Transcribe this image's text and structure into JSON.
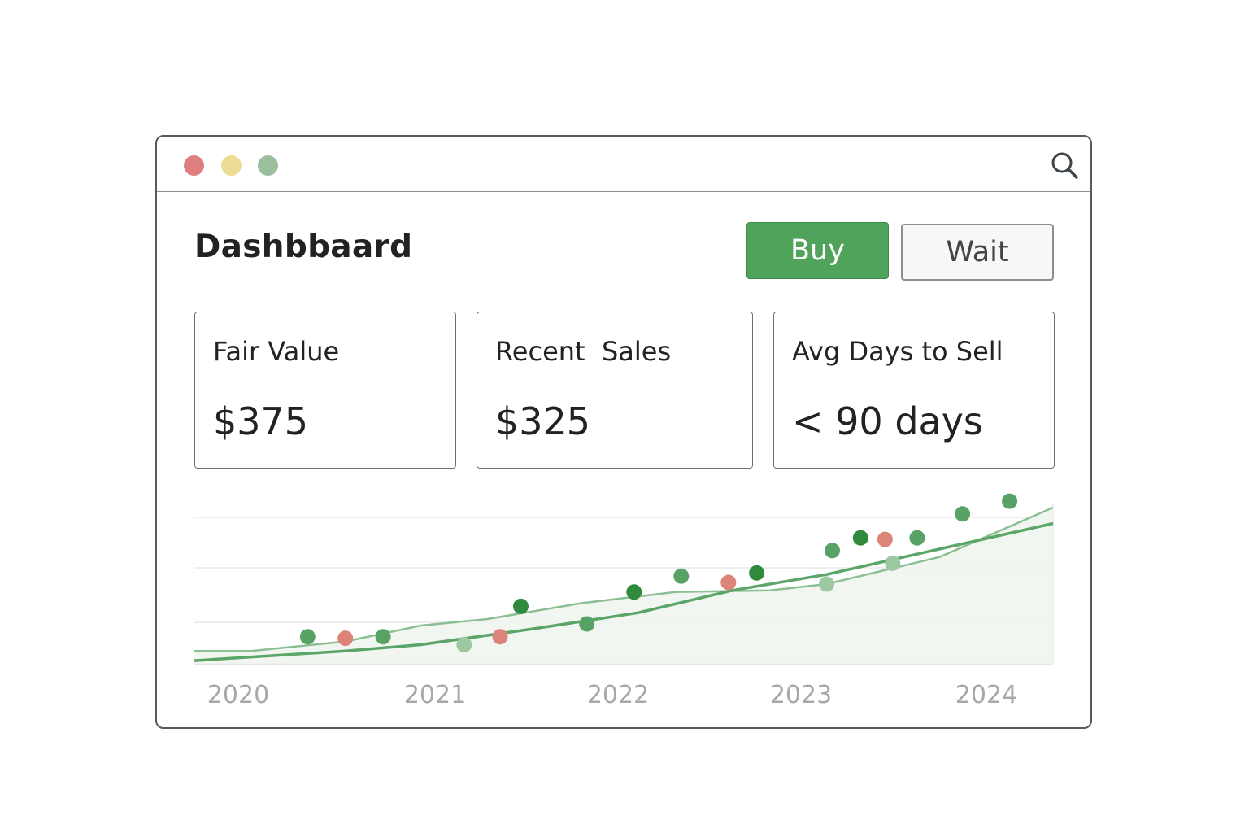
{
  "window": {
    "controls": [
      {
        "name": "close",
        "color": "#de7e7e"
      },
      {
        "name": "minimize",
        "color": "#ebdd93"
      },
      {
        "name": "maximize",
        "color": "#9bbf9c"
      }
    ],
    "search_icon": "search-icon"
  },
  "header": {
    "title": "Dashbbaard",
    "buy_label": "Buy",
    "wait_label": "Wait"
  },
  "cards": [
    {
      "label": "Fair Value",
      "value": "$375"
    },
    {
      "label": "Recent  Sales",
      "value": "$325"
    },
    {
      "label": "Avg Days to Sell",
      "value": "< 90 days"
    }
  ],
  "colors": {
    "accent_green": "#4fa35b",
    "sale_up": "#4f9e5e",
    "sale_down": "#dd8478"
  },
  "chart_data": {
    "type": "line",
    "x_ticks": [
      "2020",
      "2021",
      "2022",
      "2023",
      "2024"
    ],
    "x_range": [
      2019.8,
      2024.35
    ],
    "y_range": [
      0,
      100
    ],
    "grid": true,
    "series": [
      {
        "style": "trend-upper",
        "points": [
          [
            2019.8,
            8
          ],
          [
            2020.1,
            8
          ],
          [
            2020.6,
            14
          ],
          [
            2021.0,
            24
          ],
          [
            2021.35,
            28
          ],
          [
            2021.85,
            38
          ],
          [
            2022.35,
            45
          ],
          [
            2022.85,
            46
          ],
          [
            2023.15,
            50
          ],
          [
            2023.75,
            67
          ],
          [
            2024.35,
            98
          ]
        ]
      },
      {
        "style": "trend-lower",
        "points": [
          [
            2019.8,
            2
          ],
          [
            2020.6,
            8
          ],
          [
            2021.0,
            12
          ],
          [
            2021.6,
            22
          ],
          [
            2022.15,
            32
          ],
          [
            2022.65,
            46
          ],
          [
            2023.15,
            56
          ],
          [
            2023.6,
            68
          ],
          [
            2024.35,
            88
          ]
        ]
      }
    ],
    "sales": [
      {
        "x": 2020.4,
        "y": 17,
        "tone": "up"
      },
      {
        "x": 2020.6,
        "y": 16,
        "tone": "down"
      },
      {
        "x": 2020.8,
        "y": 17,
        "tone": "up"
      },
      {
        "x": 2021.23,
        "y": 12,
        "tone": "light"
      },
      {
        "x": 2021.42,
        "y": 17,
        "tone": "down"
      },
      {
        "x": 2021.53,
        "y": 36,
        "tone": "dark"
      },
      {
        "x": 2021.88,
        "y": 25,
        "tone": "up"
      },
      {
        "x": 2022.13,
        "y": 45,
        "tone": "dark"
      },
      {
        "x": 2022.38,
        "y": 55,
        "tone": "up"
      },
      {
        "x": 2022.63,
        "y": 51,
        "tone": "down"
      },
      {
        "x": 2022.78,
        "y": 57,
        "tone": "dark"
      },
      {
        "x": 2023.15,
        "y": 50,
        "tone": "light"
      },
      {
        "x": 2023.18,
        "y": 71,
        "tone": "up"
      },
      {
        "x": 2023.33,
        "y": 79,
        "tone": "dark"
      },
      {
        "x": 2023.46,
        "y": 78,
        "tone": "down"
      },
      {
        "x": 2023.5,
        "y": 63,
        "tone": "light"
      },
      {
        "x": 2023.63,
        "y": 79,
        "tone": "up"
      },
      {
        "x": 2023.87,
        "y": 94,
        "tone": "up"
      },
      {
        "x": 2024.12,
        "y": 102,
        "tone": "up"
      }
    ]
  }
}
